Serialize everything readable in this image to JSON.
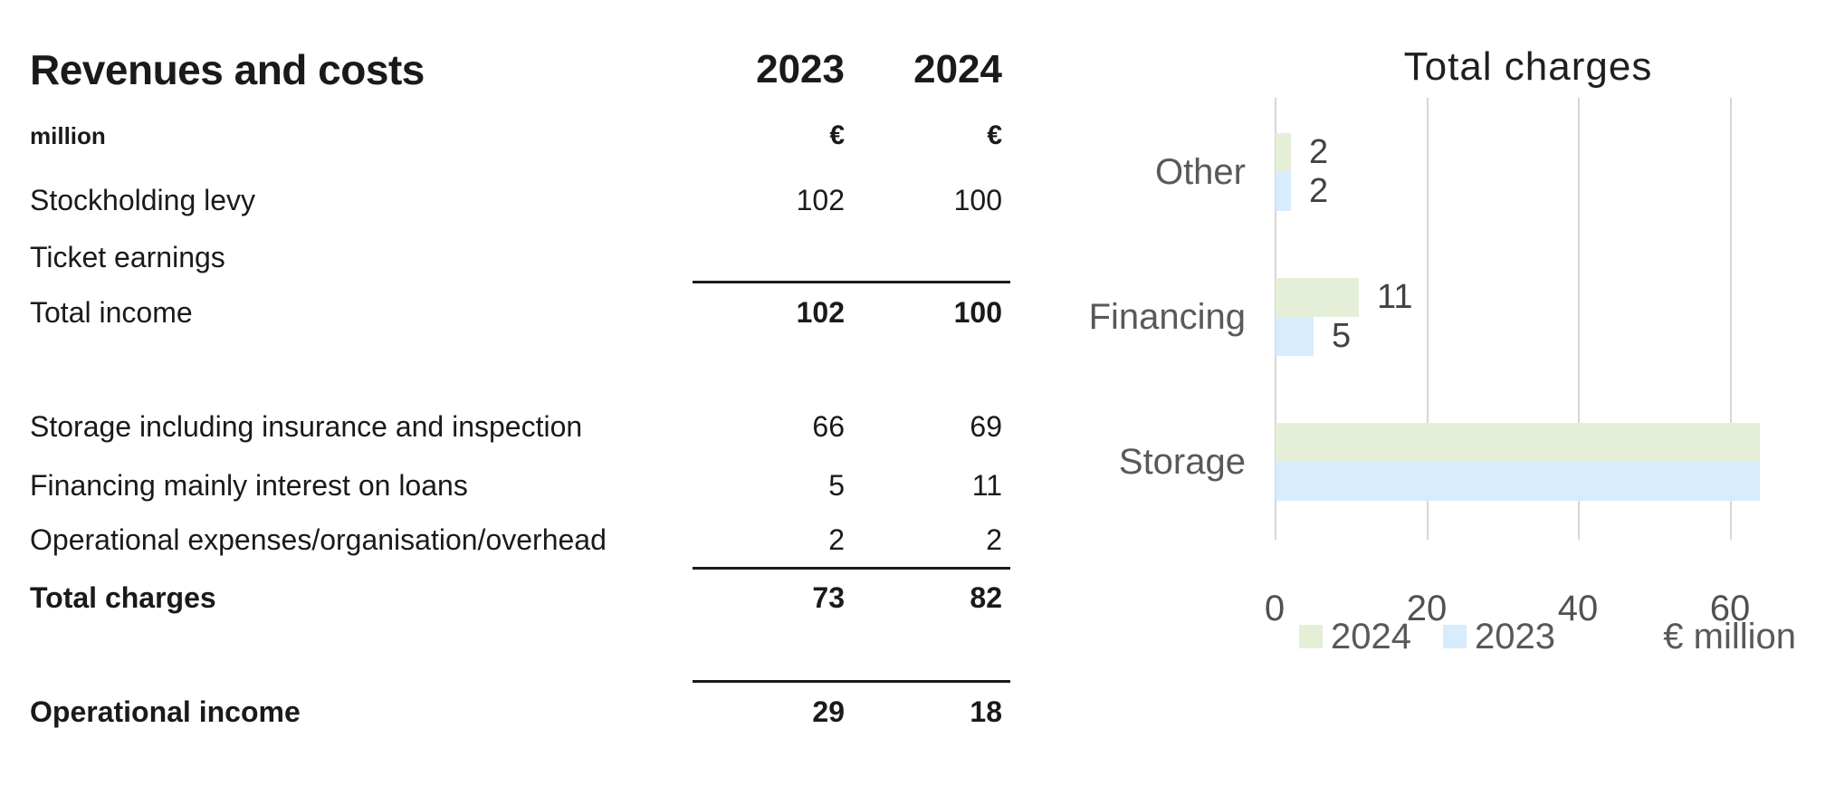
{
  "table": {
    "title": "Revenues and costs",
    "unit_label": "million",
    "currency_symbol": "€",
    "col_headers": [
      "2023",
      "2024"
    ],
    "rows": [
      {
        "label": "Stockholding levy",
        "v2023": "102",
        "v2024": "100",
        "label_bold": false,
        "values_bold": false
      },
      {
        "label": "Ticket earnings",
        "v2023": "",
        "v2024": "",
        "label_bold": false,
        "values_bold": false
      },
      {
        "label": "Total income",
        "v2023": "102",
        "v2024": "100",
        "label_bold": false,
        "values_bold": true
      },
      {
        "label": "Storage including insurance and inspection",
        "v2023": "66",
        "v2024": "69",
        "label_bold": false,
        "values_bold": false
      },
      {
        "label": "Financing mainly interest on loans",
        "v2023": "5",
        "v2024": "11",
        "label_bold": false,
        "values_bold": false
      },
      {
        "label": "Operational expenses/organisation/overhead",
        "v2023": "2",
        "v2024": "2",
        "label_bold": false,
        "values_bold": false
      },
      {
        "label": "Total charges",
        "v2023": "73",
        "v2024": "82",
        "label_bold": true,
        "values_bold": true
      },
      {
        "label": "Operational income",
        "v2023": "29",
        "v2024": "18",
        "label_bold": true,
        "values_bold": true
      }
    ]
  },
  "chart_data": {
    "type": "bar",
    "orientation": "horizontal",
    "title": "Total charges",
    "categories": [
      "Other",
      "Financing",
      "Storage"
    ],
    "series": [
      {
        "name": "2024",
        "color": "#e5efd8",
        "values": [
          2,
          11,
          69
        ]
      },
      {
        "name": "2023",
        "color": "#d7ecfd",
        "values": [
          2,
          5,
          66
        ]
      }
    ],
    "x_ticks": [
      0,
      20,
      40,
      60
    ],
    "x_axis_label": "€ million",
    "xlim": [
      0,
      64
    ],
    "grid": "vertical",
    "legend_position": "bottom",
    "note": "Storage bars exceed the axis maximum and are clipped at the plot edge without value labels"
  },
  "colors": {
    "series_2024": "#e5efd8",
    "series_2023": "#d7ecfd",
    "gridline": "#d6d6d6",
    "table_text": "#1a1a1a",
    "chart_label_gray": "#58595b"
  }
}
